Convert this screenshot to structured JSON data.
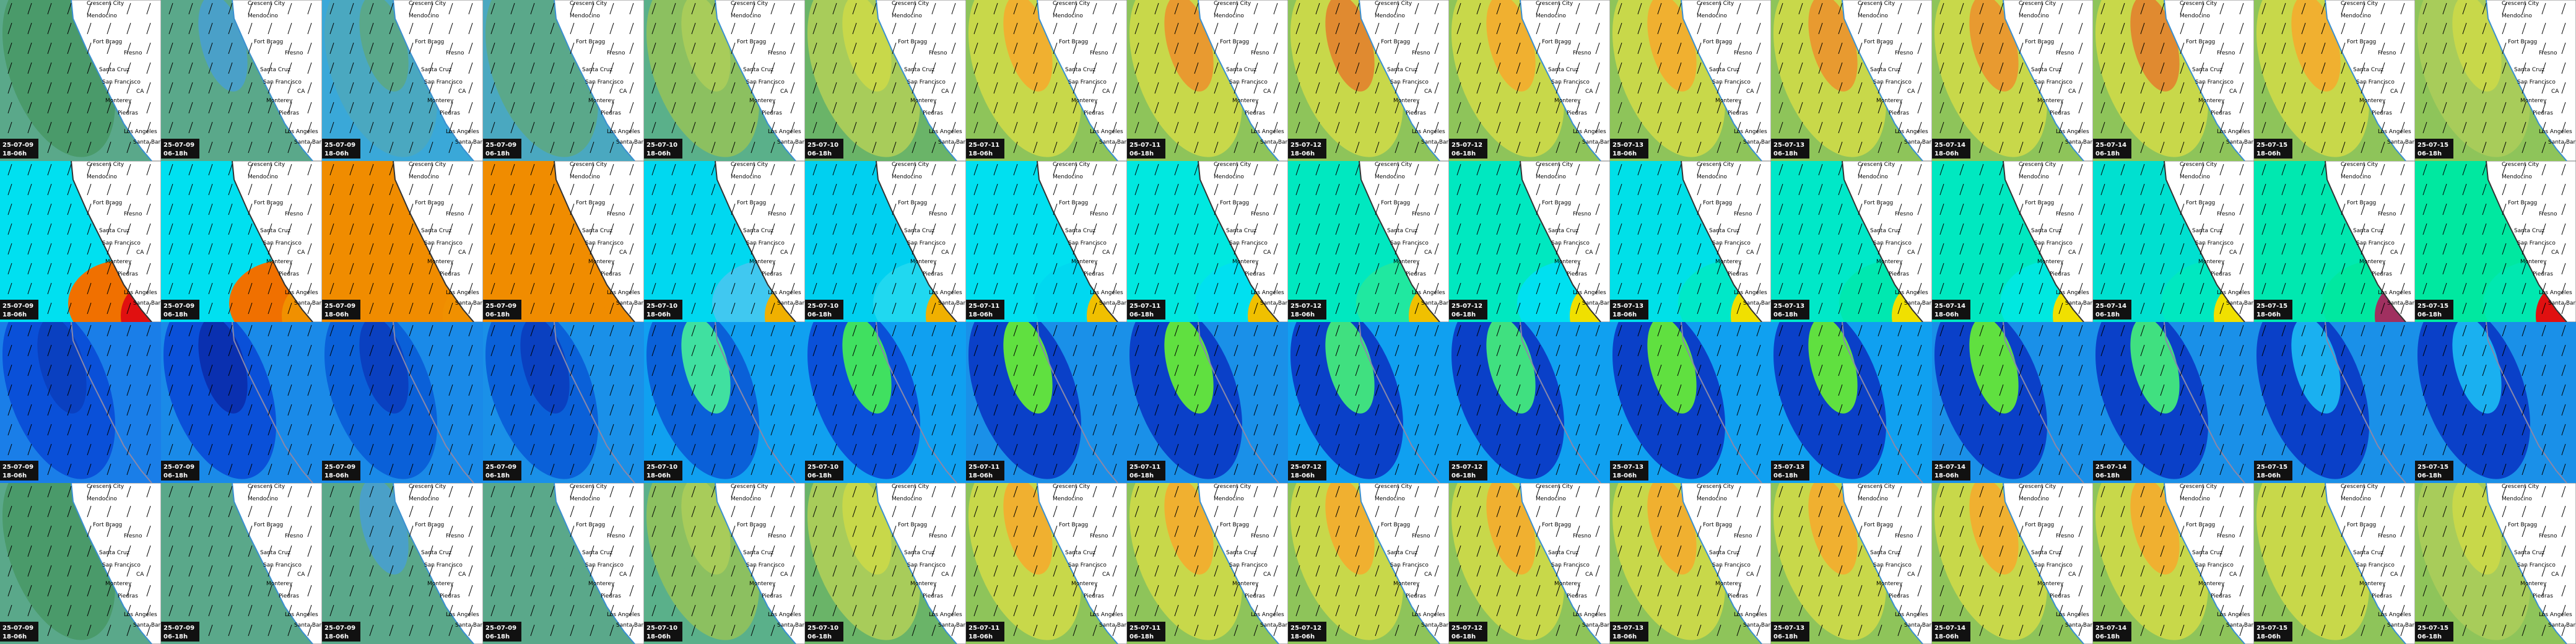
{
  "columns": [
    {
      "date": "25-07-09",
      "period": "18-06h"
    },
    {
      "date": "25-07-09",
      "period": "06-18h"
    },
    {
      "date": "25-07-09",
      "period": "18-06h"
    },
    {
      "date": "25-07-09",
      "period": "06-18h"
    },
    {
      "date": "25-07-10",
      "period": "18-06h"
    },
    {
      "date": "25-07-10",
      "period": "06-18h"
    },
    {
      "date": "25-07-11",
      "period": "18-06h"
    },
    {
      "date": "25-07-11",
      "period": "06-18h"
    },
    {
      "date": "25-07-12",
      "period": "18-06h"
    },
    {
      "date": "25-07-12",
      "period": "06-18h"
    },
    {
      "date": "25-07-13",
      "period": "18-06h"
    },
    {
      "date": "25-07-13",
      "period": "06-18h"
    },
    {
      "date": "25-07-14",
      "period": "18-06h"
    },
    {
      "date": "25-07-14",
      "period": "06-18h"
    },
    {
      "date": "25-07-15",
      "period": "18-06h"
    },
    {
      "date": "25-07-15",
      "period": "06-18h"
    }
  ],
  "places": [
    "Crescent City",
    "Mendocino",
    "Fort Bragg",
    "Fresno",
    "Santa Cruz",
    "San Francisco",
    "Monterey",
    "Piedras",
    "CA",
    "Los Angeles",
    "Santa Barbara"
  ],
  "rows": [
    {
      "land": true,
      "coast": "#3a8fd0",
      "tiles": [
        [
          "#5aa88a",
          "#4a9a6a",
          "#4a9a6a"
        ],
        [
          "#5aa88a",
          "#5aa88a",
          "#4aa0c8"
        ],
        [
          "#3aa8d8",
          "#4aa8c0",
          "#5aa88a"
        ],
        [
          "#4aa8c0",
          "#5aa88a",
          "#5aa88a"
        ],
        [
          "#5ab08a",
          "#8cc060",
          "#a8cc5a"
        ],
        [
          "#6ab468",
          "#a8cc5a",
          "#c8d84a"
        ],
        [
          "#8ec45a",
          "#c8d84a",
          "#f0b030"
        ],
        [
          "#8ec45a",
          "#c8d84a",
          "#e89a30"
        ],
        [
          "#8ec45a",
          "#c8d84a",
          "#e08a30"
        ],
        [
          "#8ec45a",
          "#c8d84a",
          "#f0b030"
        ],
        [
          "#8ec45a",
          "#c8d84a",
          "#f0b030"
        ],
        [
          "#8ec45a",
          "#c8d84a",
          "#e89a30"
        ],
        [
          "#8ec45a",
          "#c8d84a",
          "#e89a30"
        ],
        [
          "#8ec45a",
          "#c8d84a",
          "#e08a30"
        ],
        [
          "#8ec45a",
          "#c8d84a",
          "#f0b030"
        ],
        [
          "#8ec45a",
          "#a8cc5a",
          "#c8d84a"
        ]
      ]
    },
    {
      "land": true,
      "coast": "#333333",
      "tiles": [
        [
          "#00e0f0",
          "#f07000",
          "#e01010"
        ],
        [
          "#00e0f0",
          "#f07000",
          "#f09000"
        ],
        [
          "#f08c00",
          "#f08c00",
          "#f09000"
        ],
        [
          "#f08c00",
          "#f08c00",
          "#f08c00"
        ],
        [
          "#00d8f0",
          "#40c8f0",
          "#f0b000"
        ],
        [
          "#00d0f0",
          "#20d8f0",
          "#f0b000"
        ],
        [
          "#00e0f0",
          "#00d8f0",
          "#f0c000"
        ],
        [
          "#00e8e0",
          "#00e0f0",
          "#f0c000"
        ],
        [
          "#00e8c0",
          "#20e8a0",
          "#f0c000"
        ],
        [
          "#00e8c0",
          "#00e0f0",
          "#f0e000"
        ],
        [
          "#00e0e8",
          "#00e8c8",
          "#f0e000"
        ],
        [
          "#00e8c8",
          "#00e8b0",
          "#f0e000"
        ],
        [
          "#00e8c0",
          "#00e8e0",
          "#f0e000"
        ],
        [
          "#00e0d0",
          "#00e8c0",
          "#f0e000"
        ],
        [
          "#00e8b0",
          "#00e8a0",
          "#a03060"
        ],
        [
          "#00e8a0",
          "#00e8b0",
          "#e01010"
        ]
      ]
    },
    {
      "land": false,
      "coast": "#8888aa",
      "tiles": [
        [
          "#1a7ee8",
          "#0a50d8",
          "#0a40c0"
        ],
        [
          "#1a8ae8",
          "#0a50d8",
          "#0a30b0"
        ],
        [
          "#1a8ae8",
          "#0a60d8",
          "#0a40c0"
        ],
        [
          "#1a90e8",
          "#0a60d8",
          "#0a40c0"
        ],
        [
          "#10a0f0",
          "#0a60d8",
          "#40e0a0"
        ],
        [
          "#10a0f0",
          "#0a50d8",
          "#40e060"
        ],
        [
          "#1a90e8",
          "#0a40c8",
          "#60e040"
        ],
        [
          "#1a90e8",
          "#0a40c8",
          "#60e040"
        ],
        [
          "#10a0f0",
          "#0a40c8",
          "#40e080"
        ],
        [
          "#10a0f0",
          "#0a40c8",
          "#40e080"
        ],
        [
          "#10a0f0",
          "#0a40c8",
          "#60e040"
        ],
        [
          "#10a0f0",
          "#0a40c8",
          "#60e040"
        ],
        [
          "#1a90e8",
          "#0a40c8",
          "#60e040"
        ],
        [
          "#1a90e8",
          "#0a40c8",
          "#40e080"
        ],
        [
          "#1a90e8",
          "#0a40c8",
          "#1ab0f0"
        ],
        [
          "#1a90e8",
          "#0a40c8",
          "#1ab0f0"
        ]
      ]
    },
    {
      "land": true,
      "coast": "#3a8fd0",
      "tiles": [
        [
          "#5aa88a",
          "#4a9a6a",
          "#4a9a6a"
        ],
        [
          "#5aa88a",
          "#5aa88a",
          "#5aa88a"
        ],
        [
          "#5aa88a",
          "#5aa88a",
          "#4aa0c8"
        ],
        [
          "#5aa88a",
          "#5aa88a",
          "#5aa88a"
        ],
        [
          "#5ab08a",
          "#8cc060",
          "#a8cc5a"
        ],
        [
          "#6ab468",
          "#a8cc5a",
          "#c8d84a"
        ],
        [
          "#8ec45a",
          "#c8d84a",
          "#f0b030"
        ],
        [
          "#8ec45a",
          "#c8d84a",
          "#f0b030"
        ],
        [
          "#8ec45a",
          "#c8d84a",
          "#f0b030"
        ],
        [
          "#8ec45a",
          "#c8d84a",
          "#f0b030"
        ],
        [
          "#8ec45a",
          "#c8d84a",
          "#f0b030"
        ],
        [
          "#8ec45a",
          "#c8d84a",
          "#f0b030"
        ],
        [
          "#8ec45a",
          "#c8d84a",
          "#f0b030"
        ],
        [
          "#8ec45a",
          "#c8d84a",
          "#f0b030"
        ],
        [
          "#8ec45a",
          "#c8d84a",
          "#c8d84a"
        ],
        [
          "#8ec45a",
          "#a8cc5a",
          "#c8d84a"
        ]
      ]
    }
  ]
}
